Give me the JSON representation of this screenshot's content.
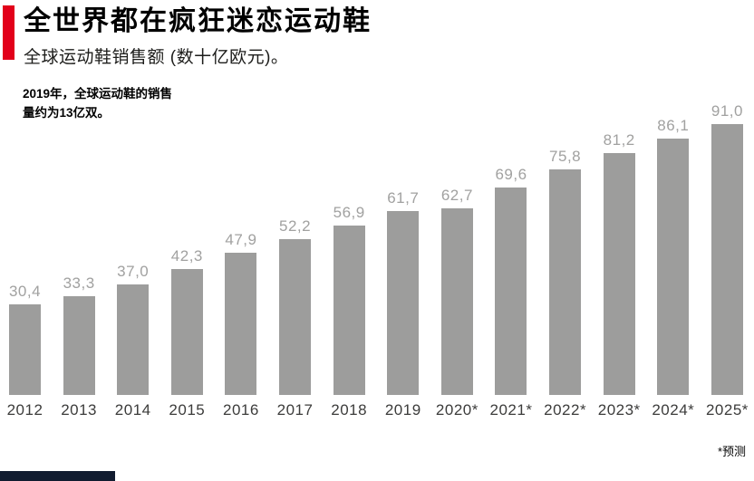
{
  "accent_color": "#e2001a",
  "header": {
    "title": "全世界都在疯狂迷恋运动鞋",
    "subtitle": "全球运动鞋销售额 (数十亿欧元)。"
  },
  "annotation": {
    "line1": "2019年，全球运动鞋的销售",
    "line2": "量约为13亿双。"
  },
  "footnote": "*预测",
  "chart_data": {
    "type": "bar",
    "title": "全世界都在疯狂迷恋运动鞋",
    "subtitle": "全球运动鞋销售额 (数十亿欧元)",
    "categories": [
      "2012",
      "2013",
      "2014",
      "2015",
      "2016",
      "2017",
      "2018",
      "2019",
      "2020*",
      "2021*",
      "2022*",
      "2023*",
      "2024*",
      "2025*"
    ],
    "values": [
      30.4,
      33.3,
      37.0,
      42.3,
      47.9,
      52.2,
      56.9,
      61.7,
      62.7,
      69.6,
      75.8,
      81.2,
      86.1,
      91.0
    ],
    "value_labels": [
      "30,4",
      "33,3",
      "37,0",
      "42,3",
      "47,9",
      "52,2",
      "56,9",
      "61,7",
      "62,7",
      "69,6",
      "75,8",
      "81,2",
      "86,1",
      "91,0"
    ],
    "xlabel": "",
    "ylabel": "数十亿欧元",
    "ylim": [
      0,
      91
    ],
    "grid": false,
    "legend": false,
    "bar_color": "#9d9d9c",
    "value_label_color": "#a1a1a0",
    "axis_label_color": "#3c3c3b",
    "annotation": "2019年，全球运动鞋的销售量约为13亿双。",
    "footnote": "*预测 (starred years are forecast)"
  },
  "footer": {
    "bar_color": "#111c30"
  }
}
